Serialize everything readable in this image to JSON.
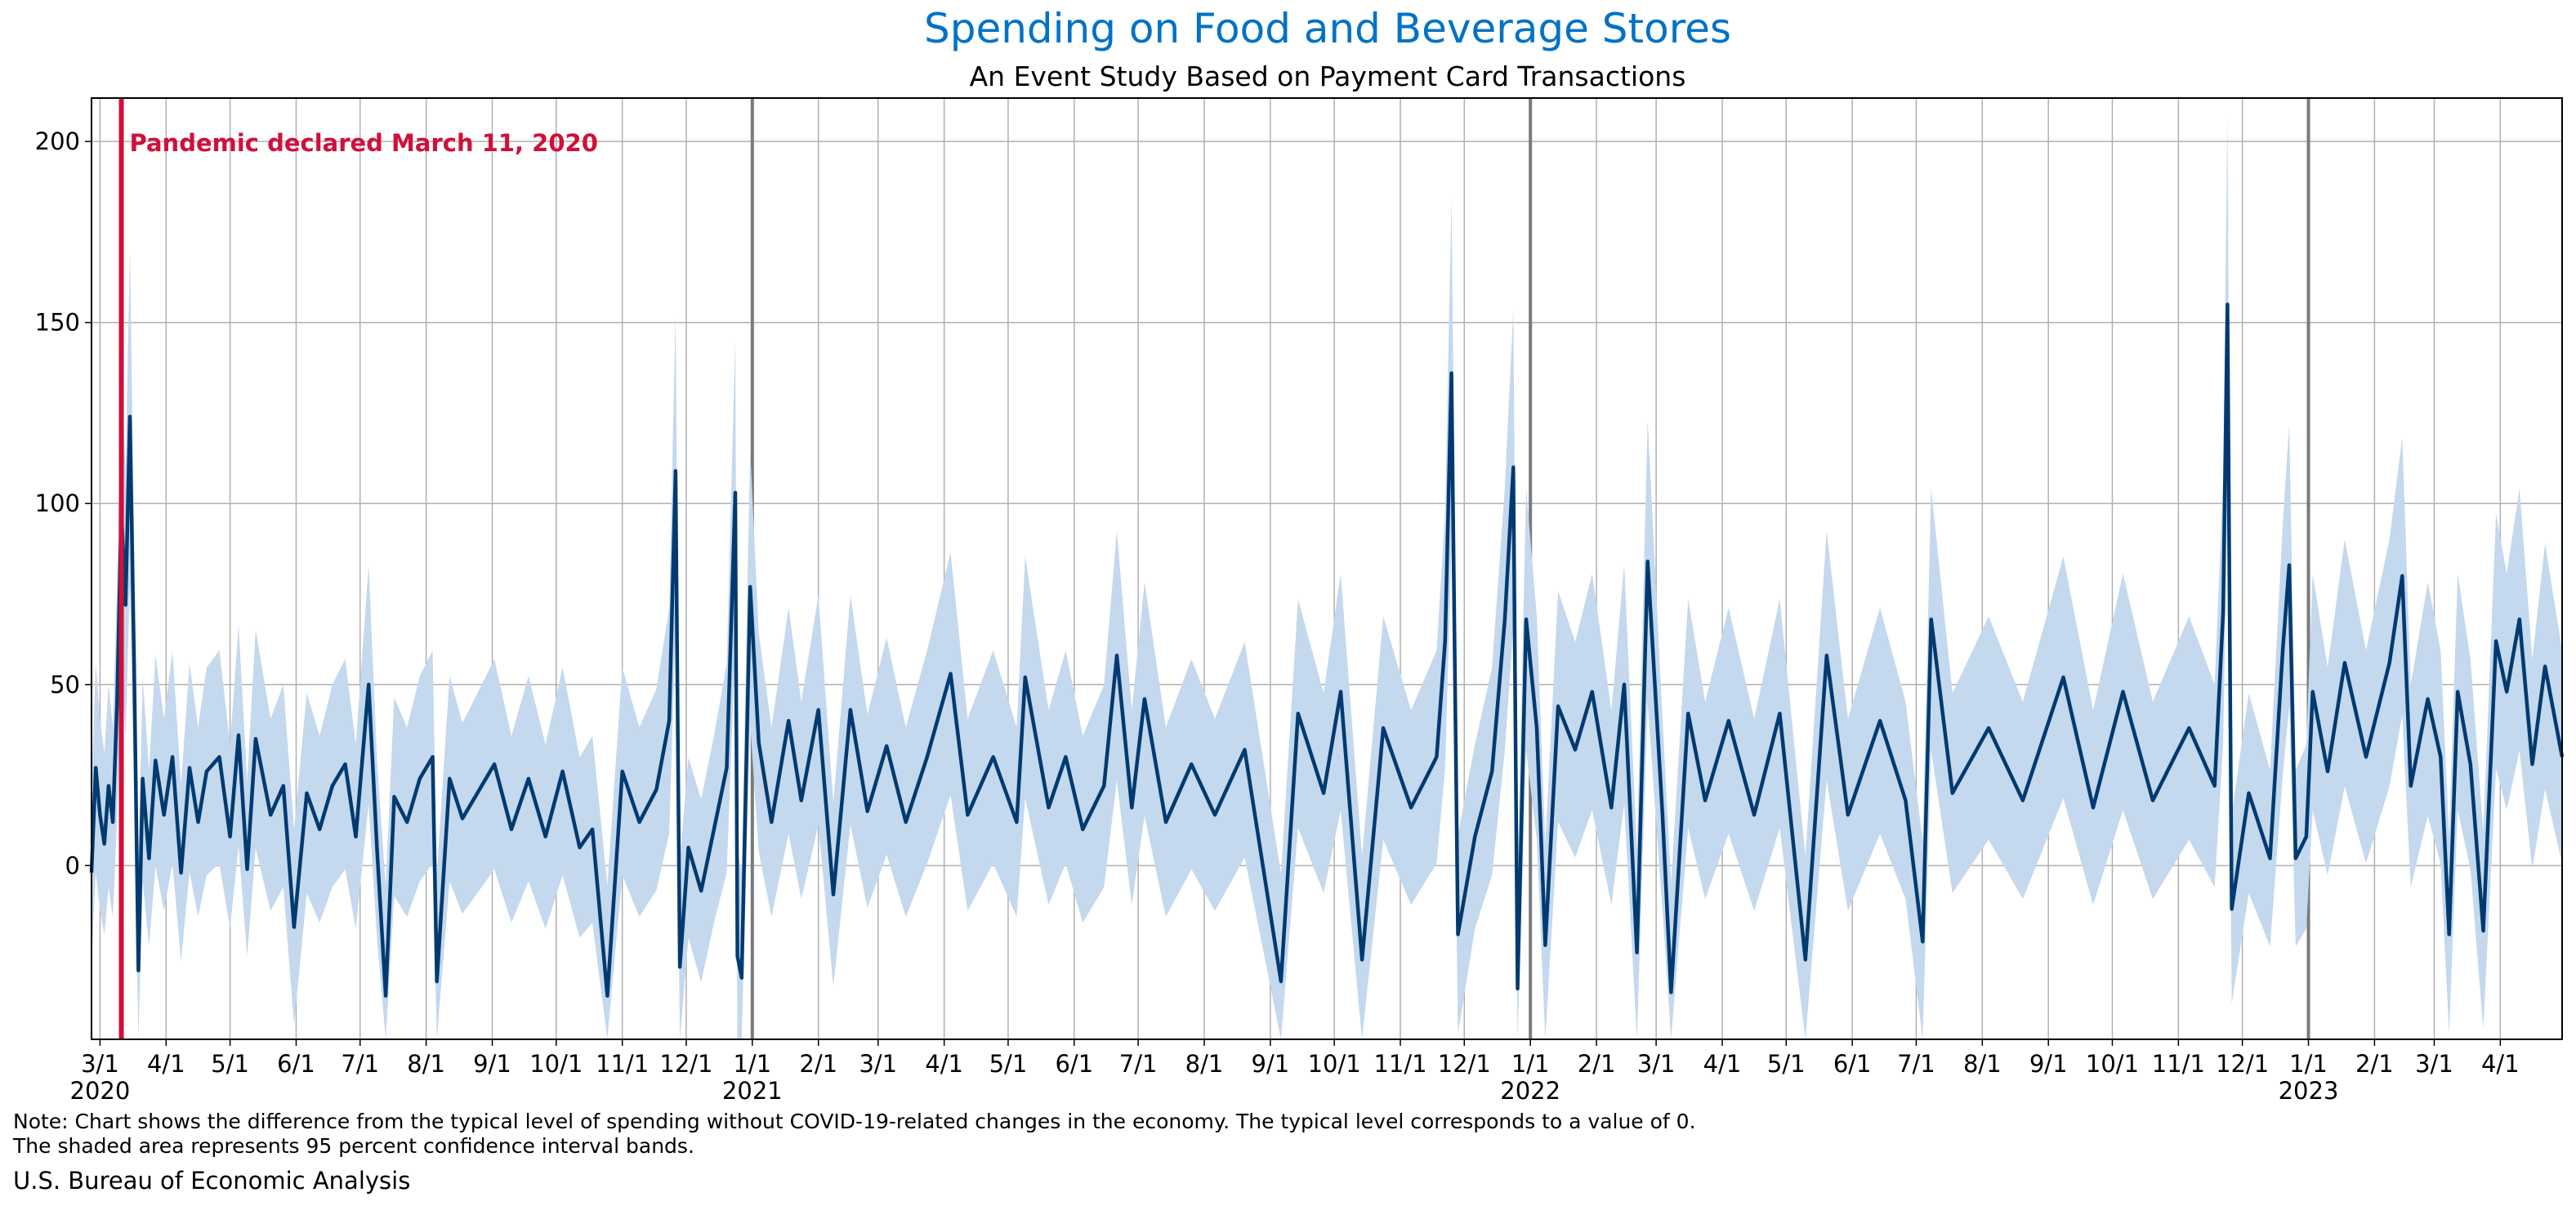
{
  "chart_data": {
    "type": "line",
    "title": "Spending on Food and Beverage Stores",
    "subtitle": "An Event Study Based on Payment Card Transactions",
    "xlabel": "",
    "ylabel": "",
    "x_range": [
      "2020-02-26",
      "2023-04-30"
    ],
    "ylim": [
      -48,
      212
    ],
    "y_ticks": [
      0,
      50,
      100,
      150,
      200
    ],
    "grid": true,
    "x_ticks": [
      {
        "date": "2020-03-01",
        "label": "3/1",
        "year": "2020"
      },
      {
        "date": "2020-04-01",
        "label": "4/1"
      },
      {
        "date": "2020-05-01",
        "label": "5/1"
      },
      {
        "date": "2020-06-01",
        "label": "6/1"
      },
      {
        "date": "2020-07-01",
        "label": "7/1"
      },
      {
        "date": "2020-08-01",
        "label": "8/1"
      },
      {
        "date": "2020-09-01",
        "label": "9/1"
      },
      {
        "date": "2020-10-01",
        "label": "10/1"
      },
      {
        "date": "2020-11-01",
        "label": "11/1"
      },
      {
        "date": "2020-12-01",
        "label": "12/1"
      },
      {
        "date": "2021-01-01",
        "label": "1/1",
        "year": "2021"
      },
      {
        "date": "2021-02-01",
        "label": "2/1"
      },
      {
        "date": "2021-03-01",
        "label": "3/1"
      },
      {
        "date": "2021-04-01",
        "label": "4/1"
      },
      {
        "date": "2021-05-01",
        "label": "5/1"
      },
      {
        "date": "2021-06-01",
        "label": "6/1"
      },
      {
        "date": "2021-07-01",
        "label": "7/1"
      },
      {
        "date": "2021-08-01",
        "label": "8/1"
      },
      {
        "date": "2021-09-01",
        "label": "9/1"
      },
      {
        "date": "2021-10-01",
        "label": "10/1"
      },
      {
        "date": "2021-11-01",
        "label": "11/1"
      },
      {
        "date": "2021-12-01",
        "label": "12/1"
      },
      {
        "date": "2022-01-01",
        "label": "1/1",
        "year": "2022"
      },
      {
        "date": "2022-02-01",
        "label": "2/1"
      },
      {
        "date": "2022-03-01",
        "label": "3/1"
      },
      {
        "date": "2022-04-01",
        "label": "4/1"
      },
      {
        "date": "2022-05-01",
        "label": "5/1"
      },
      {
        "date": "2022-06-01",
        "label": "6/1"
      },
      {
        "date": "2022-07-01",
        "label": "7/1"
      },
      {
        "date": "2022-08-01",
        "label": "8/1"
      },
      {
        "date": "2022-09-01",
        "label": "9/1"
      },
      {
        "date": "2022-10-01",
        "label": "10/1"
      },
      {
        "date": "2022-11-01",
        "label": "11/1"
      },
      {
        "date": "2022-12-01",
        "label": "12/1"
      },
      {
        "date": "2023-01-01",
        "label": "1/1",
        "year": "2023"
      },
      {
        "date": "2023-02-01",
        "label": "2/1"
      },
      {
        "date": "2023-03-01",
        "label": "3/1"
      },
      {
        "date": "2023-04-01",
        "label": "4/1"
      }
    ],
    "year_lines": [
      "2021-01-01",
      "2022-01-01",
      "2023-01-01"
    ],
    "event": {
      "date": "2020-03-11",
      "label": "Pandemic declared March 11, 2020",
      "color": "#d0103a"
    },
    "series_line_color": "#003a70",
    "band_color": "#c4d8ee",
    "series": [
      {
        "values": [
          [
            "2020-02-26",
            -2
          ],
          [
            "2020-02-28",
            27
          ],
          [
            "2020-03-01",
            14
          ],
          [
            "2020-03-03",
            6
          ],
          [
            "2020-03-05",
            22
          ],
          [
            "2020-03-07",
            12
          ],
          [
            "2020-03-09",
            45
          ],
          [
            "2020-03-11",
            98
          ],
          [
            "2020-03-13",
            72
          ],
          [
            "2020-03-15",
            124
          ],
          [
            "2020-03-17",
            55
          ],
          [
            "2020-03-19",
            -29
          ],
          [
            "2020-03-21",
            24
          ],
          [
            "2020-03-24",
            2
          ],
          [
            "2020-03-27",
            29
          ],
          [
            "2020-03-31",
            14
          ],
          [
            "2020-04-04",
            30
          ],
          [
            "2020-04-08",
            -2
          ],
          [
            "2020-04-12",
            27
          ],
          [
            "2020-04-16",
            12
          ],
          [
            "2020-04-20",
            26
          ],
          [
            "2020-04-26",
            30
          ],
          [
            "2020-05-01",
            8
          ],
          [
            "2020-05-05",
            36
          ],
          [
            "2020-05-09",
            -1
          ],
          [
            "2020-05-13",
            35
          ],
          [
            "2020-05-20",
            14
          ],
          [
            "2020-05-26",
            22
          ],
          [
            "2020-05-31",
            -17
          ],
          [
            "2020-06-06",
            20
          ],
          [
            "2020-06-12",
            10
          ],
          [
            "2020-06-18",
            22
          ],
          [
            "2020-06-24",
            28
          ],
          [
            "2020-06-29",
            8
          ],
          [
            "2020-07-05",
            50
          ],
          [
            "2020-07-09",
            4
          ],
          [
            "2020-07-13",
            -36
          ],
          [
            "2020-07-17",
            19
          ],
          [
            "2020-07-23",
            12
          ],
          [
            "2020-07-29",
            24
          ],
          [
            "2020-08-04",
            30
          ],
          [
            "2020-08-06",
            -32
          ],
          [
            "2020-08-12",
            24
          ],
          [
            "2020-08-18",
            13
          ],
          [
            "2020-08-25",
            20
          ],
          [
            "2020-09-02",
            28
          ],
          [
            "2020-09-10",
            10
          ],
          [
            "2020-09-18",
            24
          ],
          [
            "2020-09-26",
            8
          ],
          [
            "2020-10-04",
            26
          ],
          [
            "2020-10-12",
            5
          ],
          [
            "2020-10-18",
            10
          ],
          [
            "2020-10-25",
            -36
          ],
          [
            "2020-11-01",
            26
          ],
          [
            "2020-11-09",
            12
          ],
          [
            "2020-11-17",
            21
          ],
          [
            "2020-11-23",
            40
          ],
          [
            "2020-11-26",
            109
          ],
          [
            "2020-11-28",
            -28
          ],
          [
            "2020-12-02",
            5
          ],
          [
            "2020-12-08",
            -7
          ],
          [
            "2020-12-14",
            10
          ],
          [
            "2020-12-20",
            27
          ],
          [
            "2020-12-24",
            103
          ],
          [
            "2020-12-25",
            -25
          ],
          [
            "2020-12-27",
            -31
          ],
          [
            "2020-12-31",
            77
          ],
          [
            "2021-01-04",
            34
          ],
          [
            "2021-01-10",
            12
          ],
          [
            "2021-01-18",
            40
          ],
          [
            "2021-01-24",
            18
          ],
          [
            "2021-02-01",
            43
          ],
          [
            "2021-02-08",
            -8
          ],
          [
            "2021-02-16",
            43
          ],
          [
            "2021-02-24",
            15
          ],
          [
            "2021-03-05",
            33
          ],
          [
            "2021-03-14",
            12
          ],
          [
            "2021-03-24",
            30
          ],
          [
            "2021-04-04",
            53
          ],
          [
            "2021-04-12",
            14
          ],
          [
            "2021-04-24",
            30
          ],
          [
            "2021-05-05",
            12
          ],
          [
            "2021-05-09",
            52
          ],
          [
            "2021-05-20",
            16
          ],
          [
            "2021-05-28",
            30
          ],
          [
            "2021-06-05",
            10
          ],
          [
            "2021-06-15",
            22
          ],
          [
            "2021-06-21",
            58
          ],
          [
            "2021-06-28",
            16
          ],
          [
            "2021-07-04",
            46
          ],
          [
            "2021-07-14",
            12
          ],
          [
            "2021-07-26",
            28
          ],
          [
            "2021-08-06",
            14
          ],
          [
            "2021-08-20",
            32
          ],
          [
            "2021-09-06",
            -32
          ],
          [
            "2021-09-14",
            42
          ],
          [
            "2021-09-26",
            20
          ],
          [
            "2021-10-04",
            48
          ],
          [
            "2021-10-14",
            -26
          ],
          [
            "2021-10-24",
            38
          ],
          [
            "2021-11-06",
            16
          ],
          [
            "2021-11-18",
            30
          ],
          [
            "2021-11-22",
            62
          ],
          [
            "2021-11-25",
            136
          ],
          [
            "2021-11-28",
            -19
          ],
          [
            "2021-12-06",
            8
          ],
          [
            "2021-12-14",
            26
          ],
          [
            "2021-12-20",
            68
          ],
          [
            "2021-12-24",
            110
          ],
          [
            "2021-12-26",
            -34
          ],
          [
            "2021-12-30",
            68
          ],
          [
            "2022-01-04",
            38
          ],
          [
            "2022-01-08",
            -22
          ],
          [
            "2022-01-14",
            44
          ],
          [
            "2022-01-22",
            32
          ],
          [
            "2022-01-30",
            48
          ],
          [
            "2022-02-08",
            16
          ],
          [
            "2022-02-14",
            50
          ],
          [
            "2022-02-20",
            -24
          ],
          [
            "2022-02-25",
            84
          ],
          [
            "2022-03-04",
            14
          ],
          [
            "2022-03-08",
            -35
          ],
          [
            "2022-03-16",
            42
          ],
          [
            "2022-03-24",
            18
          ],
          [
            "2022-04-04",
            40
          ],
          [
            "2022-04-16",
            14
          ],
          [
            "2022-04-28",
            42
          ],
          [
            "2022-05-10",
            -26
          ],
          [
            "2022-05-20",
            58
          ],
          [
            "2022-05-30",
            14
          ],
          [
            "2022-06-14",
            40
          ],
          [
            "2022-06-26",
            18
          ],
          [
            "2022-07-04",
            -21
          ],
          [
            "2022-07-08",
            68
          ],
          [
            "2022-07-18",
            20
          ],
          [
            "2022-08-04",
            38
          ],
          [
            "2022-08-20",
            18
          ],
          [
            "2022-09-08",
            52
          ],
          [
            "2022-09-22",
            16
          ],
          [
            "2022-10-06",
            48
          ],
          [
            "2022-10-20",
            18
          ],
          [
            "2022-11-06",
            38
          ],
          [
            "2022-11-18",
            22
          ],
          [
            "2022-11-22",
            70
          ],
          [
            "2022-11-24",
            155
          ],
          [
            "2022-11-26",
            -12
          ],
          [
            "2022-12-04",
            20
          ],
          [
            "2022-12-14",
            2
          ],
          [
            "2022-12-20",
            60
          ],
          [
            "2022-12-23",
            83
          ],
          [
            "2022-12-26",
            2
          ],
          [
            "2022-12-31",
            8
          ],
          [
            "2023-01-03",
            48
          ],
          [
            "2023-01-10",
            26
          ],
          [
            "2023-01-18",
            56
          ],
          [
            "2023-01-28",
            30
          ],
          [
            "2023-02-08",
            56
          ],
          [
            "2023-02-14",
            80
          ],
          [
            "2023-02-18",
            22
          ],
          [
            "2023-02-26",
            46
          ],
          [
            "2023-03-04",
            30
          ],
          [
            "2023-03-08",
            -19
          ],
          [
            "2023-03-12",
            48
          ],
          [
            "2023-03-18",
            28
          ],
          [
            "2023-03-24",
            -18
          ],
          [
            "2023-03-30",
            62
          ],
          [
            "2023-04-04",
            48
          ],
          [
            "2023-04-10",
            68
          ],
          [
            "2023-04-16",
            28
          ],
          [
            "2023-04-22",
            55
          ],
          [
            "2023-04-30",
            30
          ]
        ]
      }
    ]
  },
  "notes": {
    "line1": "Note: Chart shows the difference from the typical level of spending without COVID-19-related changes in the economy. The typical level corresponds to a value of 0.",
    "line2": "The shaded area represents 95 percent confidence interval bands.",
    "source": "U.S. Bureau of Economic Analysis"
  }
}
